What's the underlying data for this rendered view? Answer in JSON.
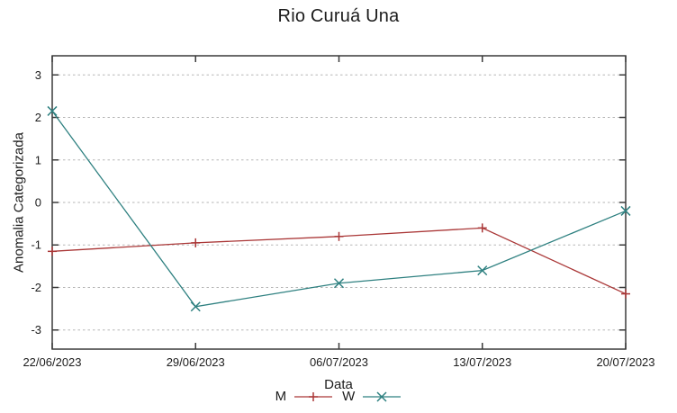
{
  "chart_data": {
    "type": "line",
    "title": "Rio Curuá Una",
    "xlabel": "Data",
    "ylabel": "Anomalia Categorizada",
    "categories": [
      "22/06/2023",
      "29/06/2023",
      "06/07/2023",
      "13/07/2023",
      "20/07/2023"
    ],
    "series": [
      {
        "name": "M",
        "marker": "plus",
        "color": "#aa3737",
        "values": [
          -1.15,
          -0.95,
          -0.8,
          -0.6,
          -2.15
        ]
      },
      {
        "name": "W",
        "marker": "cross",
        "color": "#2e8080",
        "values": [
          2.15,
          -2.45,
          -1.9,
          -1.6,
          -0.2
        ]
      }
    ],
    "ylim": [
      -3.45,
      3.45
    ],
    "yticks": [
      3,
      2,
      1,
      0,
      -1,
      -2,
      -3
    ],
    "grid": "horizontal-dashed",
    "legend_position": "bottom-center",
    "colors": {
      "axis": "#3a3a3a",
      "grid": "#b5b5b5",
      "text": "#1c1c1c",
      "background": "#ffffff"
    }
  }
}
